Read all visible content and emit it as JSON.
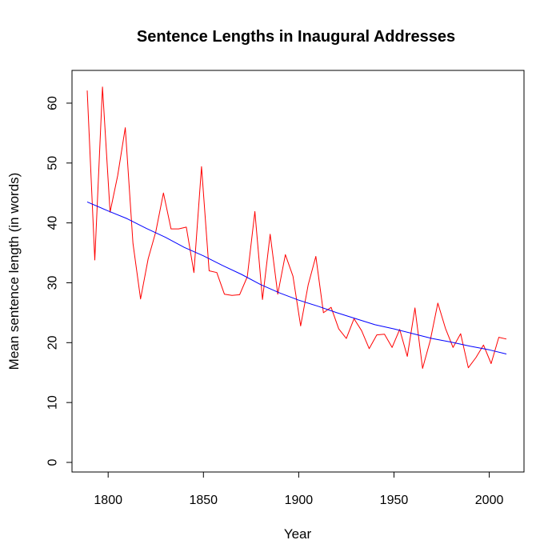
{
  "chart_data": {
    "type": "line",
    "title": "Sentence Lengths in Inaugural Addresses",
    "xlabel": "Year",
    "ylabel": "Mean sentence length (in words)",
    "xlim": [
      1780,
      2015
    ],
    "ylim": [
      0,
      65
    ],
    "x_ticks": [
      1800,
      1850,
      1900,
      1950,
      2000
    ],
    "y_ticks": [
      0,
      10,
      20,
      30,
      40,
      50,
      60
    ],
    "grid": false,
    "legend": "none",
    "series": [
      {
        "role": "observed",
        "color": "#ff0000",
        "x": [
          1789,
          1793,
          1797,
          1801,
          1805,
          1809,
          1813,
          1817,
          1821,
          1825,
          1829,
          1833,
          1837,
          1841,
          1845,
          1849,
          1853,
          1857,
          1861,
          1865,
          1869,
          1873,
          1877,
          1881,
          1885,
          1889,
          1893,
          1897,
          1901,
          1905,
          1909,
          1913,
          1917,
          1921,
          1925,
          1929,
          1933,
          1937,
          1941,
          1945,
          1949,
          1953,
          1957,
          1961,
          1965,
          1969,
          1973,
          1977,
          1981,
          1985,
          1989,
          1993,
          1997,
          2001,
          2005,
          2009
        ],
        "y": [
          62.1,
          33.8,
          62.7,
          41.8,
          47.9,
          55.9,
          36.6,
          27.3,
          34.0,
          38.5,
          45.0,
          39.0,
          39.0,
          39.3,
          31.7,
          49.4,
          32.0,
          31.7,
          28.1,
          27.9,
          28.0,
          31.0,
          41.9,
          27.2,
          38.1,
          28.1,
          34.7,
          31.1,
          22.8,
          29.7,
          34.4,
          25.0,
          25.9,
          22.3,
          20.7,
          24.0,
          22.0,
          19.0,
          21.3,
          21.4,
          19.2,
          22.2,
          17.7,
          25.8,
          15.7,
          20.3,
          26.6,
          22.4,
          19.2,
          21.5,
          15.8,
          17.5,
          19.6,
          16.5,
          20.9,
          20.6
        ]
      },
      {
        "role": "smoothed-trend",
        "color": "#0000ff",
        "x": [
          1789,
          1800,
          1810,
          1820,
          1830,
          1840,
          1850,
          1860,
          1870,
          1880,
          1890,
          1900,
          1910,
          1920,
          1930,
          1940,
          1950,
          1960,
          1970,
          1980,
          1990,
          2000,
          2009
        ],
        "y": [
          43.5,
          42.0,
          40.7,
          39.1,
          37.6,
          35.9,
          34.5,
          32.9,
          31.4,
          29.7,
          28.3,
          27.1,
          26.1,
          25.0,
          24.0,
          23.0,
          22.3,
          21.5,
          20.7,
          20.1,
          19.4,
          18.8,
          18.1
        ]
      }
    ]
  }
}
